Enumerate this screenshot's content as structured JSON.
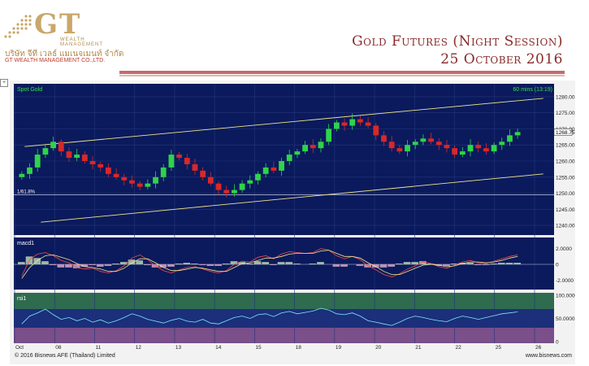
{
  "header": {
    "logo_mark": "GT",
    "logo_subtitle": "WEALTH MANAGEMENT",
    "company_thai": "บริษัท จีที เวลธ์ แมเนจเมนท์ จำกัด",
    "company_en": "GT WEALTH MANAGEMENT CO.,LTD.",
    "title_line1": "Gold Futures (Night Session)",
    "title_line2": "25 October 2016"
  },
  "colors": {
    "brand_gold": "#c9a76a",
    "title_red": "#8a2a2a",
    "chart_bg": "#0a1a5c",
    "up_candle": "#2fd34a",
    "down_candle": "#d8282a",
    "channel_line": "#f0e68c"
  },
  "chart_data": [
    {
      "type": "candlestick",
      "title": "Spot Gold",
      "timeframe_label": "60 mins (13:19)",
      "ylim": [
        1238,
        1282
      ],
      "yticks": [
        1240.0,
        1245.0,
        1250.0,
        1255.0,
        1260.0,
        1265.0,
        1270.0,
        1275.0,
        1280.0
      ],
      "last_price_label": "1268.75",
      "fib_label": "1/61.8%",
      "fib_level": 1249.5,
      "x_labels": [
        "Oct",
        "08",
        "11",
        "12",
        "13",
        "14",
        "15",
        "18",
        "19",
        "20",
        "21",
        "22",
        "25",
        "26"
      ],
      "trend_channel": {
        "upper": [
          [
            0.02,
            1264.5
          ],
          [
            0.98,
            1279.5
          ]
        ],
        "lower": [
          [
            0.05,
            1241.0
          ],
          [
            0.98,
            1256.0
          ]
        ]
      },
      "close_path": [
        1256,
        1258,
        1262,
        1264,
        1266,
        1263,
        1261,
        1262,
        1260,
        1259,
        1258,
        1256,
        1255,
        1254,
        1253,
        1252,
        1253,
        1255,
        1258,
        1262,
        1261,
        1259,
        1257,
        1255,
        1253,
        1251,
        1250,
        1251,
        1253,
        1254,
        1256,
        1258,
        1257,
        1260,
        1262,
        1263,
        1265,
        1264,
        1266,
        1270,
        1272,
        1271,
        1273,
        1272,
        1271,
        1268,
        1266,
        1264,
        1263,
        1265,
        1266,
        1267,
        1266,
        1265,
        1264,
        1262,
        1263,
        1265,
        1264,
        1263,
        1265,
        1266,
        1268,
        1269
      ]
    },
    {
      "type": "line",
      "title": "macd1",
      "ylim": [
        -3,
        3
      ],
      "yticks": [
        2.0,
        0,
        -2.0
      ],
      "series": [
        {
          "values": [
            -1.5,
            0.6,
            1.3,
            1.5,
            1.1,
            0.5,
            0.2,
            -0.4,
            -0.6,
            -0.5,
            -0.9,
            -1.1,
            -0.8,
            -0.2,
            0.8,
            1.2,
            0.6,
            -0.2,
            -0.8,
            -1.1,
            -0.7,
            -0.4,
            -0.3,
            -0.6,
            -0.9,
            -1.1,
            -0.8,
            0.0,
            0.4,
            0.3,
            0.9,
            1.1,
            0.7,
            1.3,
            1.6,
            1.5,
            1.4,
            1.5,
            2.0,
            1.8,
            1.1,
            0.7,
            1.0,
            0.6,
            -0.2,
            -0.7,
            -1.3,
            -1.6,
            -1.2,
            -0.6,
            -0.2,
            0.3,
            0.1,
            -0.3,
            -0.5,
            -0.1,
            0.3,
            0.5,
            0.2,
            0.1,
            0.4,
            0.7,
            1.0,
            1.2
          ]
        },
        {
          "values": [
            -1.8,
            -0.4,
            0.5,
            1.1,
            1.2,
            0.9,
            0.6,
            0.1,
            -0.3,
            -0.4,
            -0.6,
            -0.9,
            -0.9,
            -0.5,
            0.2,
            0.7,
            0.7,
            0.2,
            -0.4,
            -0.8,
            -0.8,
            -0.6,
            -0.4,
            -0.5,
            -0.7,
            -0.9,
            -0.9,
            -0.4,
            0.1,
            0.2,
            0.5,
            0.8,
            0.8,
            1.0,
            1.3,
            1.4,
            1.4,
            1.4,
            1.7,
            1.8,
            1.4,
            1.0,
            1.0,
            0.8,
            0.2,
            -0.3,
            -0.9,
            -1.3,
            -1.3,
            -0.9,
            -0.5,
            -0.1,
            0.0,
            -0.1,
            -0.3,
            -0.2,
            0.1,
            0.3,
            0.3,
            0.2,
            0.3,
            0.5,
            0.8,
            1.0
          ]
        }
      ]
    },
    {
      "type": "line",
      "title": "rsi1",
      "ylim": [
        0,
        100
      ],
      "yticks": [
        100.0,
        50.0,
        0
      ],
      "overbought": 70,
      "oversold": 30,
      "values": [
        38,
        55,
        62,
        70,
        58,
        48,
        52,
        45,
        50,
        42,
        47,
        40,
        45,
        52,
        60,
        55,
        48,
        44,
        40,
        46,
        50,
        44,
        42,
        48,
        40,
        38,
        45,
        52,
        55,
        50,
        58,
        60,
        54,
        62,
        65,
        60,
        63,
        66,
        72,
        68,
        60,
        58,
        62,
        55,
        45,
        42,
        38,
        35,
        42,
        50,
        55,
        52,
        48,
        45,
        43,
        50,
        55,
        52,
        48,
        52,
        56,
        60,
        62,
        64
      ]
    }
  ],
  "footer": {
    "copyright": "© 2016 Bisnews AFE (Thailand) Limited",
    "website": "www.bisnews.com"
  }
}
